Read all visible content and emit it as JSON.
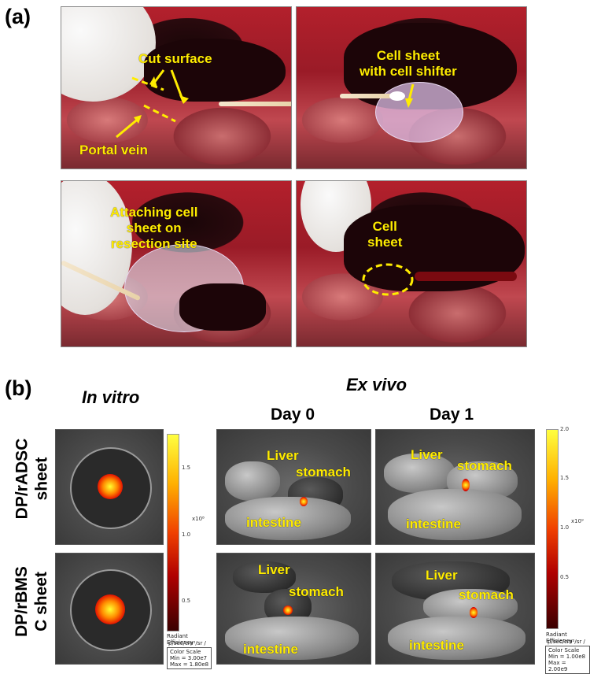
{
  "panel_a": {
    "label": "(a)",
    "photo1": {
      "label1": "Cut surface",
      "label2": "Portal vein"
    },
    "photo2": {
      "label": "Cell sheet\nwith cell shifter"
    },
    "photo3": {
      "label": "Attaching cell\nsheet on\nresection site"
    },
    "photo4": {
      "label": "Cell\nsheet"
    }
  },
  "panel_b": {
    "label": "(b)",
    "in_vitro_title": "In vitro",
    "ex_vivo_title": "Ex vivo",
    "day0": "Day 0",
    "day1": "Day 1",
    "row1_label": "DP/rADSC\nsheet",
    "row2_label": "DP/rBMS\nC sheet",
    "organ_labels": {
      "liver": "Liver",
      "stomach": "stomach",
      "intestine": "intestine"
    },
    "scale_left": {
      "ticks": [
        "1.5",
        "1.0",
        "0.5"
      ],
      "exponent": "x10⁸",
      "title": "Radiant Efficiency",
      "units": "p/sec/cm²/sr / μW/cm²",
      "box": [
        "Color Scale",
        "Min = 3.00e7",
        "Max = 1.80e8"
      ]
    },
    "scale_right": {
      "top": "2.0",
      "ticks": [
        "1.5",
        "1.0",
        "0.5"
      ],
      "exponent": "x10⁹",
      "title": "Radiant Efficiency",
      "units": "p/sec/cm²/sr / μW/cm²",
      "box": [
        "Color Scale",
        "Min = 1.00e8",
        "Max = 2.00e9"
      ]
    }
  }
}
